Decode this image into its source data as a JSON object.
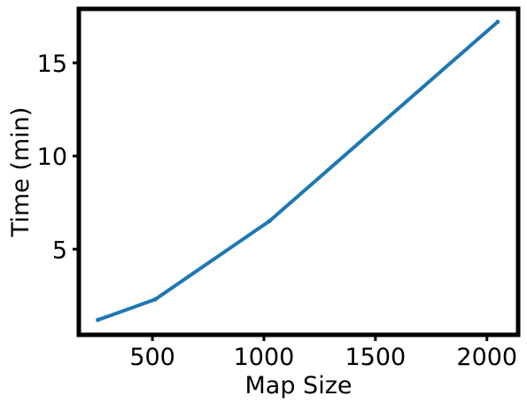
{
  "chart_data": {
    "type": "line",
    "title": "",
    "xlabel": "Map Size",
    "ylabel": "Time (min)",
    "xlim": [
      170,
      2140
    ],
    "ylim": [
      0.4,
      17.9
    ],
    "xticks": [
      500,
      1000,
      1500,
      2000
    ],
    "yticks": [
      5,
      10,
      15
    ],
    "grid": false,
    "legend": "none",
    "series": [
      {
        "color": "#1f77b4",
        "x": [
          256,
          512,
          1024,
          2048
        ],
        "y": [
          1.2,
          2.3,
          6.5,
          17.2
        ]
      }
    ]
  }
}
